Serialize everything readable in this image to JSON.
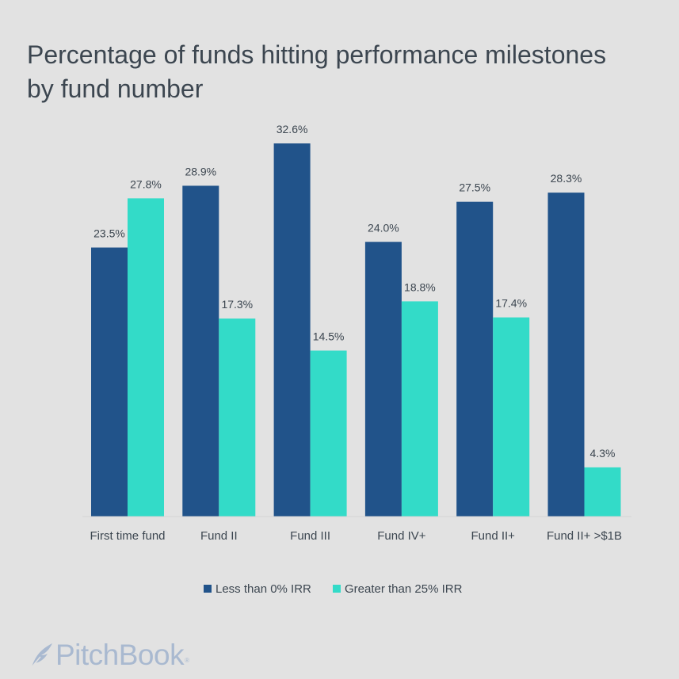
{
  "chart_data": {
    "type": "bar",
    "title": "Percentage of funds hitting performance milestones by fund number",
    "categories": [
      "First time fund",
      "Fund II",
      "Fund III",
      "Fund IV+",
      "Fund II+",
      "Fund II+ >$1B"
    ],
    "series": [
      {
        "name": "Less than 0% IRR",
        "color": "#21538a",
        "values": [
          23.5,
          28.9,
          32.6,
          24.0,
          27.5,
          28.3
        ],
        "labels": [
          "23.5%",
          "28.9%",
          "32.6%",
          "24.0%",
          "27.5%",
          "28.3%"
        ]
      },
      {
        "name": "Greater than 25% IRR",
        "color": "#33dbc8",
        "values": [
          27.8,
          17.3,
          14.5,
          18.8,
          17.4,
          4.3
        ],
        "labels": [
          "27.8%",
          "17.3%",
          "14.5%",
          "18.8%",
          "17.4%",
          "4.3%"
        ]
      }
    ],
    "ylim": [
      0,
      32.6
    ],
    "grid": false,
    "legend": "bottom"
  },
  "brand": {
    "name": "PitchBook",
    "registered": "®",
    "color": "#a9b9d0",
    "icon": "quill-icon"
  }
}
